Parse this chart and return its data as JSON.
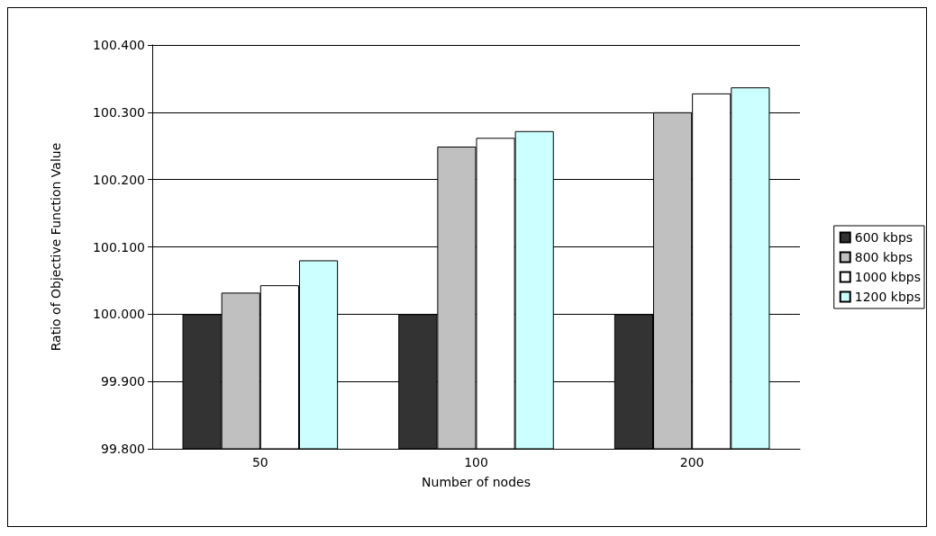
{
  "chart_data": {
    "type": "bar",
    "xlabel": "Number of nodes",
    "ylabel": "Ratio of Objective Function Value",
    "categories": [
      "50",
      "100",
      "200"
    ],
    "series": [
      {
        "name": "600 kbps",
        "color": "#333333",
        "values": [
          100.0,
          100.0,
          100.0
        ]
      },
      {
        "name": "800 kbps",
        "color": "#c0c0c0",
        "values": [
          100.032,
          100.249,
          100.3
        ]
      },
      {
        "name": "1000 kbps",
        "color": "#ffffff",
        "values": [
          100.043,
          100.262,
          100.328
        ]
      },
      {
        "name": "1200 kbps",
        "color": "#ccffff",
        "values": [
          100.08,
          100.272,
          100.337
        ]
      }
    ],
    "ylim": [
      99.8,
      100.4
    ],
    "yticks": [
      {
        "value": 99.8,
        "label": "99.800"
      },
      {
        "value": 99.9,
        "label": "99.900"
      },
      {
        "value": 100.0,
        "label": "100.000"
      },
      {
        "value": 100.1,
        "label": "100.100"
      },
      {
        "value": 100.2,
        "label": "100.200"
      },
      {
        "value": 100.3,
        "label": "100.300"
      },
      {
        "value": 100.4,
        "label": "100.400"
      }
    ],
    "grid": "y",
    "legend": "right"
  }
}
